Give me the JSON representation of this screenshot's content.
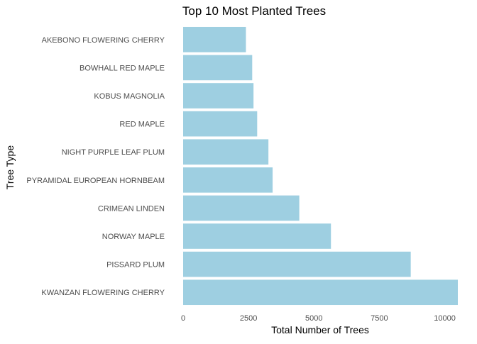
{
  "chart_data": {
    "type": "bar",
    "orientation": "horizontal",
    "title": "Top 10 Most Planted Trees",
    "xlabel": "Total Number of Trees",
    "ylabel": "Tree Type",
    "categories": [
      "AKEBONO FLOWERING CHERRY",
      "BOWHALL RED MAPLE",
      "KOBUS MAGNOLIA",
      "RED MAPLE",
      "NIGHT PURPLE LEAF PLUM",
      "PYRAMIDAL EUROPEAN HORNBEAM",
      "CRIMEAN LINDEN",
      "NORWAY MAPLE",
      "PISSARD PLUM",
      "KWANZAN FLOWERING CHERRY"
    ],
    "values": [
      2400,
      2640,
      2690,
      2830,
      3260,
      3420,
      4440,
      5650,
      8700,
      10500
    ],
    "xticks": [
      0,
      2500,
      5000,
      7500,
      10000
    ],
    "xtick_labels": [
      "0",
      "2500",
      "5000",
      "7500",
      "10000"
    ],
    "xlim": [
      0,
      10500
    ],
    "bar_color": "#9ecfe1",
    "grid": false,
    "legend": "none"
  }
}
